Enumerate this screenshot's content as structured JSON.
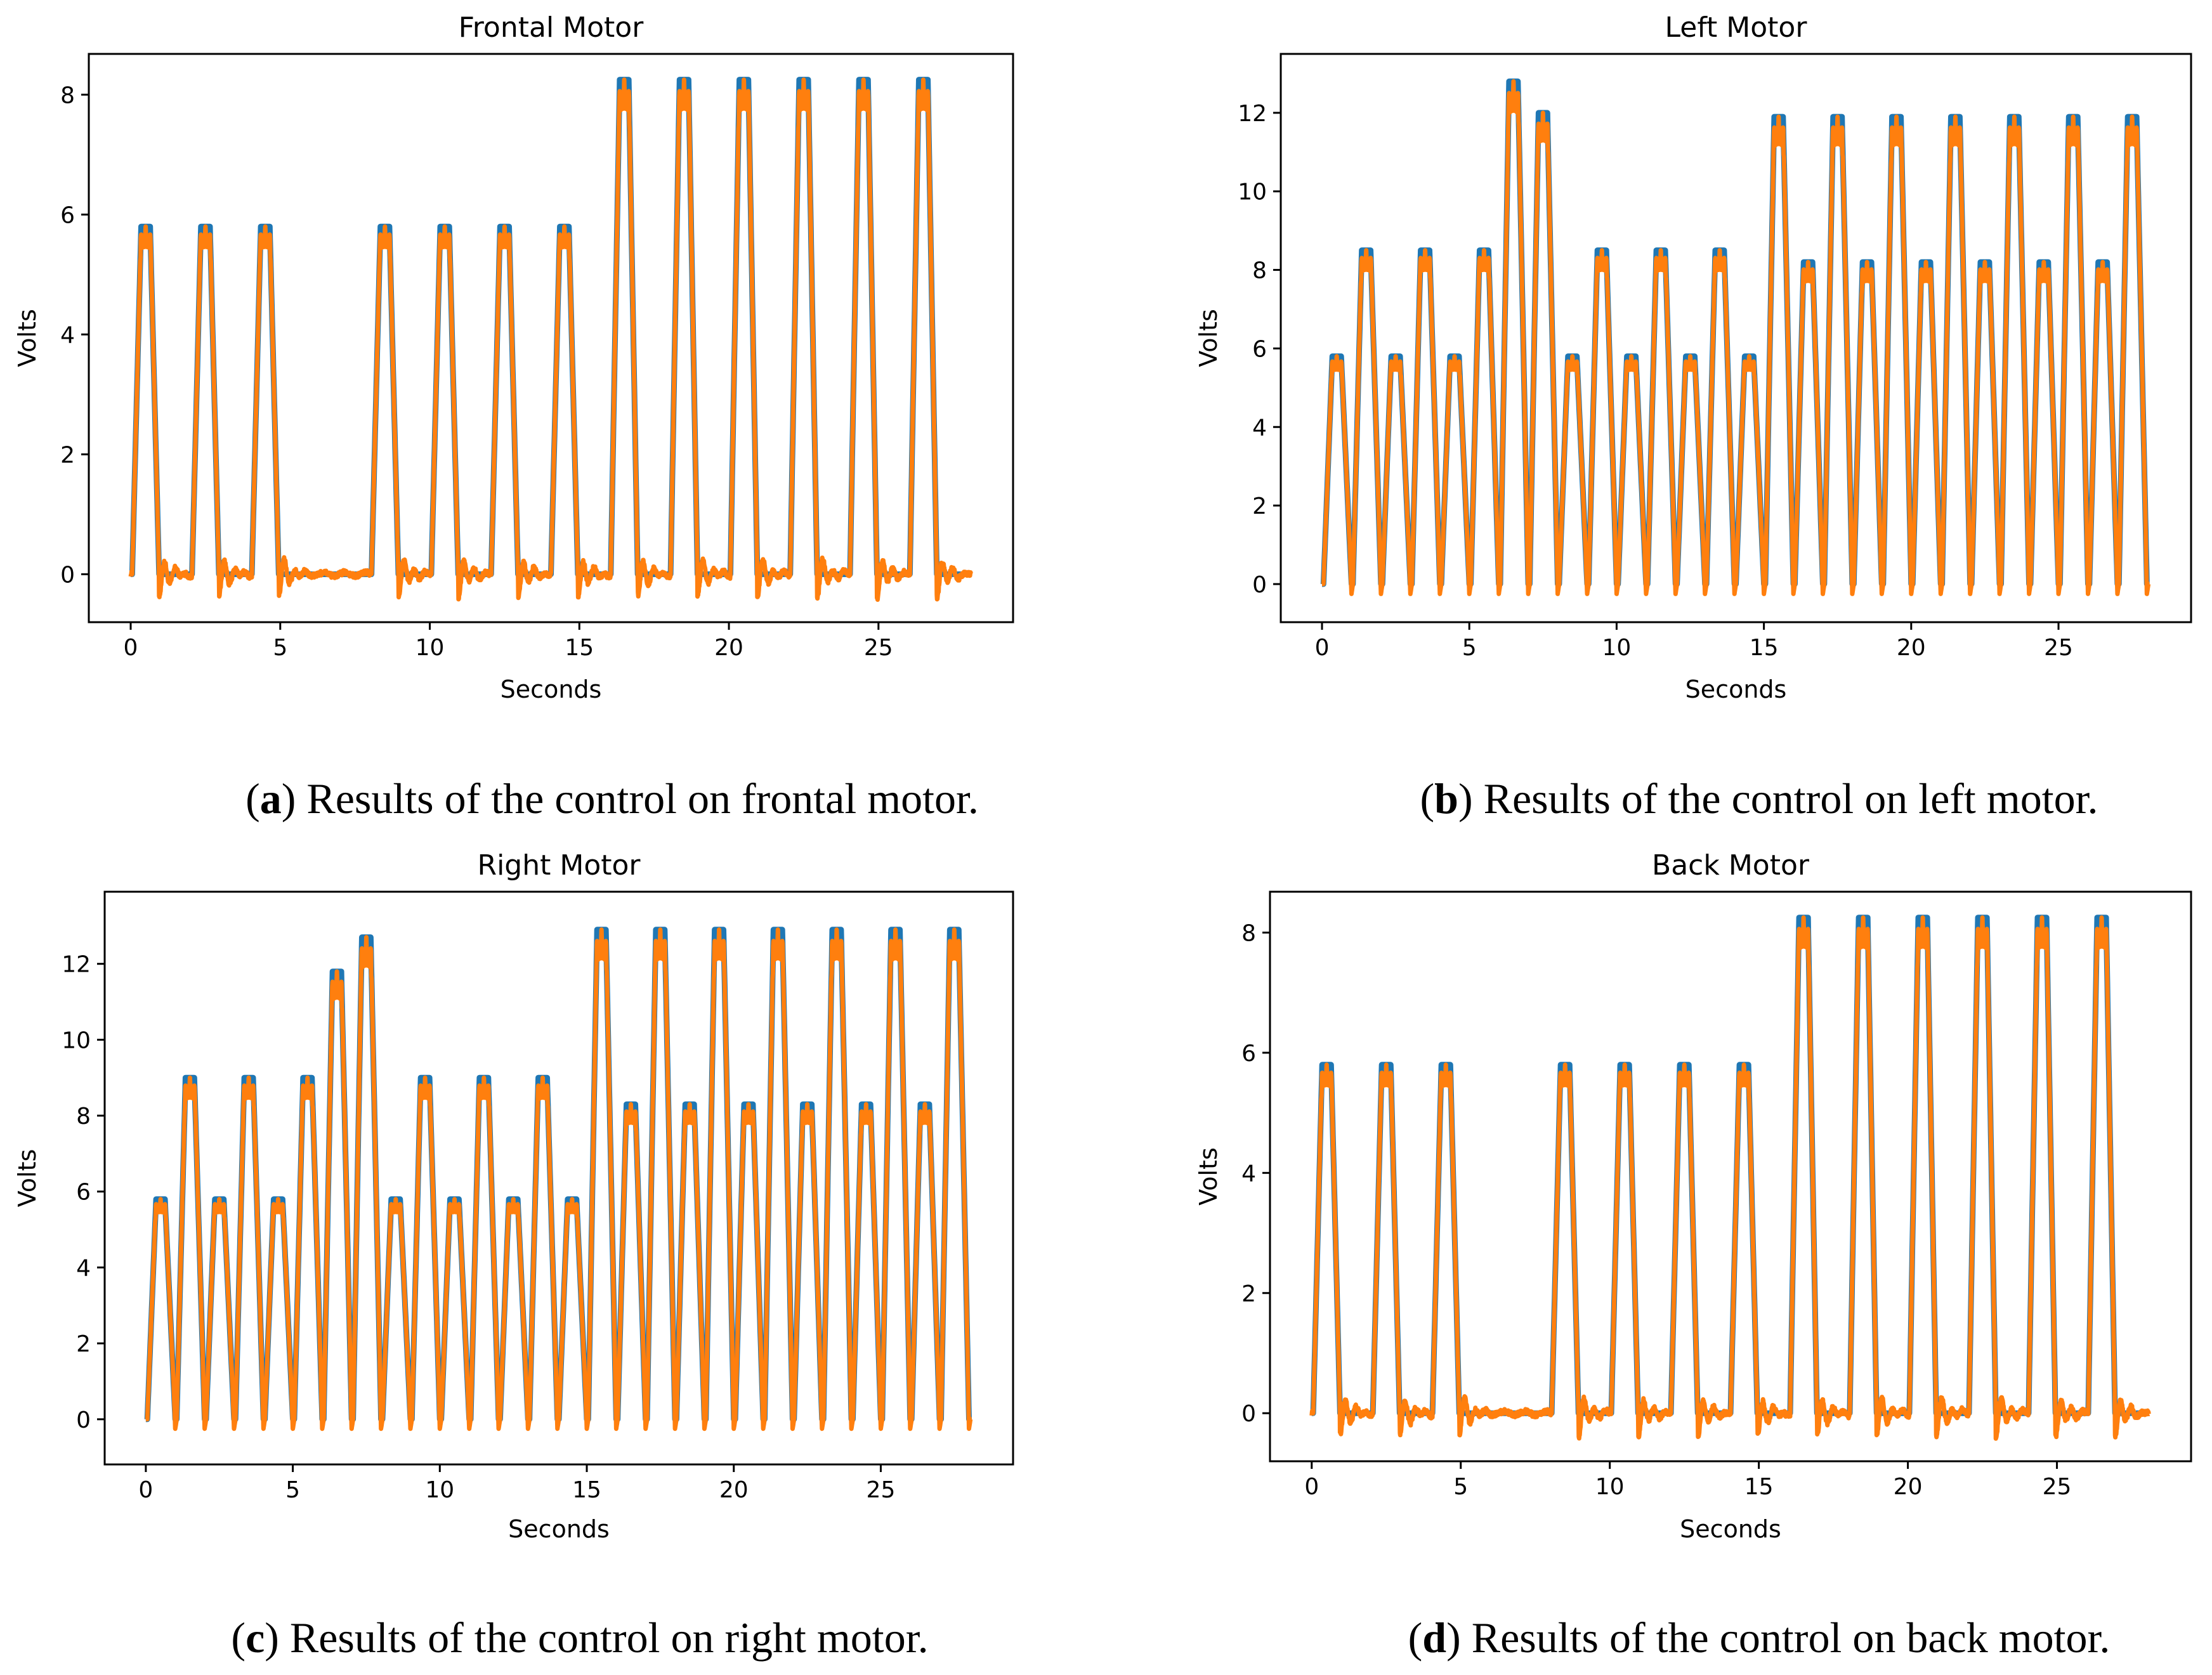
{
  "chart_data": [
    {
      "type": "line",
      "title": "Frontal Motor",
      "xlabel": "Seconds",
      "ylabel": "Volts",
      "caption_letter": "a",
      "caption_text": ") Results of the control on frontal motor.",
      "caption_open": "(",
      "xlim": [
        -1.4,
        29.5
      ],
      "ylim": [
        -0.8,
        8.68
      ],
      "xticks": [
        0,
        5,
        10,
        15,
        20,
        25
      ],
      "yticks": [
        0,
        2,
        4,
        6,
        8
      ],
      "t_end": 28.1,
      "pulse_mode": "isolated",
      "pulse_centers": [
        0.5,
        2.5,
        4.5,
        8.5,
        10.5,
        12.5,
        14.5,
        16.5,
        18.5,
        20.5,
        22.5,
        24.5,
        26.5
      ],
      "pulse_levels": [
        5.8,
        5.8,
        5.8,
        5.8,
        5.8,
        5.8,
        5.8,
        8.25,
        8.25,
        8.25,
        8.25,
        8.25,
        8.25
      ],
      "series_colors": [
        "#1f77b4",
        "#ff7f0e"
      ]
    },
    {
      "type": "line",
      "title": "Left Motor",
      "xlabel": "Seconds",
      "ylabel": "Volts",
      "caption_letter": "b",
      "caption_text": ") Results of the control on left motor.",
      "caption_open": "(",
      "xlim": [
        -1.4,
        29.5
      ],
      "ylim": [
        -0.97,
        13.5
      ],
      "xticks": [
        0,
        5,
        10,
        15,
        20,
        25
      ],
      "yticks": [
        0,
        2,
        4,
        6,
        8,
        10,
        12
      ],
      "t_end": 28.1,
      "pulse_mode": "continuous",
      "pulse_centers": [
        0.5,
        1.5,
        2.5,
        3.5,
        4.5,
        5.5,
        6.5,
        7.5,
        8.5,
        9.5,
        10.5,
        11.5,
        12.5,
        13.5,
        14.5,
        15.5,
        16.5,
        17.5,
        18.5,
        19.5,
        20.5,
        21.5,
        22.5,
        23.5,
        24.5,
        25.5,
        26.5,
        27.5
      ],
      "pulse_levels": [
        5.8,
        8.5,
        5.8,
        8.5,
        5.8,
        8.5,
        12.8,
        12.0,
        5.8,
        8.5,
        5.8,
        8.5,
        5.8,
        8.5,
        5.8,
        11.9,
        8.2,
        11.9,
        8.2,
        11.9,
        8.2,
        11.9,
        8.2,
        11.9,
        8.2,
        11.9,
        8.2,
        11.9
      ],
      "series_colors": [
        "#1f77b4",
        "#ff7f0e"
      ]
    },
    {
      "type": "line",
      "title": "Right Motor",
      "xlabel": "Seconds",
      "ylabel": "Volts",
      "caption_letter": "c",
      "caption_text": ") Results of the control on right motor.",
      "caption_open": "(",
      "xlim": [
        -1.4,
        29.5
      ],
      "ylim": [
        -1.19,
        13.9
      ],
      "xticks": [
        0,
        5,
        10,
        15,
        20,
        25
      ],
      "yticks": [
        0,
        2,
        4,
        6,
        8,
        10,
        12
      ],
      "t_end": 28.1,
      "pulse_mode": "continuous",
      "pulse_centers": [
        0.5,
        1.5,
        2.5,
        3.5,
        4.5,
        5.5,
        6.5,
        7.5,
        8.5,
        9.5,
        10.5,
        11.5,
        12.5,
        13.5,
        14.5,
        15.5,
        16.5,
        17.5,
        18.5,
        19.5,
        20.5,
        21.5,
        22.5,
        23.5,
        24.5,
        25.5,
        26.5,
        27.5
      ],
      "pulse_levels": [
        5.8,
        9.0,
        5.8,
        9.0,
        5.8,
        9.0,
        11.8,
        12.7,
        5.8,
        9.0,
        5.8,
        9.0,
        5.8,
        9.0,
        5.8,
        12.9,
        8.3,
        12.9,
        8.3,
        12.9,
        8.3,
        12.9,
        8.3,
        12.9,
        8.3,
        12.9,
        8.3,
        12.9
      ],
      "series_colors": [
        "#1f77b4",
        "#ff7f0e"
      ]
    },
    {
      "type": "line",
      "title": "Back Motor",
      "xlabel": "Seconds",
      "ylabel": "Volts",
      "caption_letter": "d",
      "caption_text": ") Results of the control on back motor.",
      "caption_open": "(",
      "xlim": [
        -1.4,
        29.5
      ],
      "ylim": [
        -0.8,
        8.68
      ],
      "xticks": [
        0,
        5,
        10,
        15,
        20,
        25
      ],
      "yticks": [
        0,
        2,
        4,
        6,
        8
      ],
      "t_end": 28.1,
      "pulse_mode": "isolated",
      "pulse_centers": [
        0.5,
        2.5,
        4.5,
        8.5,
        10.5,
        12.5,
        14.5,
        16.5,
        18.5,
        20.5,
        22.5,
        24.5,
        26.5
      ],
      "pulse_levels": [
        5.8,
        5.8,
        5.8,
        5.8,
        5.8,
        5.8,
        5.8,
        8.25,
        8.25,
        8.25,
        8.25,
        8.25,
        8.25
      ],
      "series_colors": [
        "#1f77b4",
        "#ff7f0e"
      ]
    }
  ]
}
